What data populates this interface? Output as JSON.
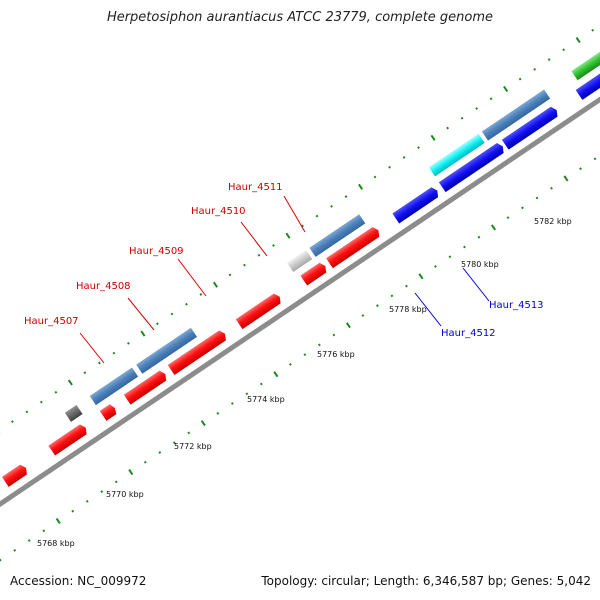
{
  "header": {
    "title": "Herpetosiphon aurantiacus ATCC 23779, complete genome"
  },
  "footer": {
    "accession": "Accession: NC_009972",
    "summary": "Topology: circular; Length: 6,346,587 bp; Genes: 5,042"
  },
  "colors": {
    "background": "#ffffff",
    "backbone": "#8c8c8c",
    "tick": "#1a8a1a",
    "label_reverse": "#cc0000",
    "label_forward": "#0000cc",
    "leader_reverse": "#dd0000",
    "leader_forward": "#0000dd"
  },
  "ruler": {
    "unit": "kbp",
    "labels": [
      "5768 kbp",
      "5770 kbp",
      "5772 kbp",
      "5774 kbp",
      "5776 kbp",
      "5778 kbp",
      "5780 kbp",
      "5782 kbp"
    ]
  },
  "features": [
    {
      "label": "Haur_4507",
      "strand": "reverse",
      "color": "#cc0000"
    },
    {
      "label": "Haur_4508",
      "strand": "reverse",
      "color": "#cc0000"
    },
    {
      "label": "Haur_4509",
      "strand": "reverse",
      "color": "#cc0000"
    },
    {
      "label": "Haur_4510",
      "strand": "reverse",
      "color": "#cc0000"
    },
    {
      "label": "Haur_4511",
      "strand": "reverse",
      "color": "#cc0000"
    },
    {
      "label": "Haur_4512",
      "strand": "forward",
      "color": "#0000cc"
    },
    {
      "label": "Haur_4513",
      "strand": "forward",
      "color": "#0000cc"
    }
  ]
}
